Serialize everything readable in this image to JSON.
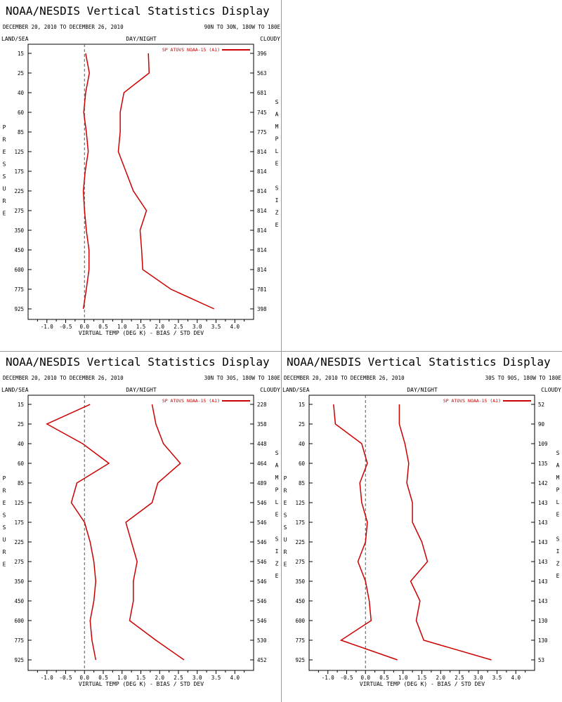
{
  "display_title": "NOAA/NESDIS Vertical Statistics Display",
  "date_range": "DECEMBER 20, 2010 TO DECEMBER 26, 2010",
  "land_sea_label": "LAND/SEA",
  "day_night_label": "DAY/NIGHT",
  "cloudy_label": "CLOUDY",
  "pressure_label_letters": [
    "P",
    "R",
    "E",
    "S",
    "S",
    "U",
    "R",
    "E"
  ],
  "sample_size_letters": [
    "S",
    "A",
    "M",
    "P",
    "L",
    "E",
    "",
    "S",
    "I",
    "Z",
    "E"
  ],
  "colors": {
    "series": "#cc0000",
    "zero_line": "#555555",
    "axis": "#000000",
    "divider": "#9a9a9a"
  },
  "chart_data": [
    {
      "type": "line",
      "region": "90N TO 30N, 180W TO 180E",
      "legend": "SP ATOVS NOAA-15 (A1)",
      "xlabel": "VIRTUAL TEMP (DEG K) - BIAS / STD DEV",
      "ylabel": "PRESSURE",
      "xlim": [
        -1.5,
        4.5
      ],
      "xticks": [
        "-1.0",
        "-0.5",
        "0.0",
        "0.5",
        "1.0",
        "1.5",
        "2.0",
        "2.5",
        "3.0",
        "3.5",
        "4.0"
      ],
      "y_categories": [
        "15",
        "25",
        "40",
        "60",
        "85",
        "125",
        "175",
        "225",
        "275",
        "350",
        "450",
        "600",
        "775",
        "925"
      ],
      "sample_sizes": [
        "396",
        "563",
        "681",
        "745",
        "775",
        "814",
        "814",
        "814",
        "814",
        "814",
        "814",
        "814",
        "781",
        "398"
      ],
      "series": [
        {
          "name": "BIAS",
          "values": [
            0.03,
            0.13,
            0.03,
            -0.02,
            0.05,
            0.1,
            0.02,
            -0.03,
            0.0,
            0.05,
            0.12,
            0.12,
            0.05,
            -0.03
          ]
        },
        {
          "name": "STD DEV",
          "values": [
            1.7,
            1.72,
            1.05,
            0.95,
            0.95,
            0.9,
            1.1,
            1.3,
            1.65,
            1.48,
            1.52,
            1.55,
            2.3,
            3.45
          ]
        }
      ]
    },
    {
      "type": "line",
      "region": "30N TO 30S, 180W TO 180E",
      "legend": "SP ATOVS NOAA-15 (A1)",
      "xlabel": "VIRTUAL TEMP (DEG K) - BIAS / STD DEV",
      "ylabel": "PRESSURE",
      "xlim": [
        -1.5,
        4.5
      ],
      "xticks": [
        "-1.0",
        "-0.5",
        "0.0",
        "0.5",
        "1.0",
        "1.5",
        "2.0",
        "2.5",
        "3.0",
        "3.5",
        "4.0"
      ],
      "y_categories": [
        "15",
        "25",
        "40",
        "60",
        "85",
        "125",
        "175",
        "225",
        "275",
        "350",
        "450",
        "600",
        "775",
        "925"
      ],
      "sample_sizes": [
        "228",
        "358",
        "448",
        "464",
        "489",
        "546",
        "546",
        "546",
        "546",
        "546",
        "546",
        "546",
        "530",
        "452"
      ],
      "series": [
        {
          "name": "BIAS",
          "values": [
            0.15,
            -1.0,
            -0.05,
            0.65,
            -0.2,
            -0.35,
            0.0,
            0.15,
            0.25,
            0.3,
            0.25,
            0.15,
            0.2,
            0.3
          ]
        },
        {
          "name": "STD DEV",
          "values": [
            1.8,
            1.9,
            2.1,
            2.55,
            1.95,
            1.8,
            1.1,
            1.25,
            1.4,
            1.3,
            1.3,
            1.2,
            1.9,
            2.65
          ]
        }
      ]
    },
    {
      "type": "line",
      "region": "30S TO 90S, 180W TO 180E",
      "legend": "SP ATOVS NOAA-15 (A1)",
      "xlabel": "VIRTUAL TEMP (DEG K) - BIAS / STD DEV",
      "ylabel": "PRESSURE",
      "xlim": [
        -1.5,
        4.5
      ],
      "xticks": [
        "-1.0",
        "-0.5",
        "0.0",
        "0.5",
        "1.0",
        "1.5",
        "2.0",
        "2.5",
        "3.0",
        "3.5",
        "4.0"
      ],
      "y_categories": [
        "15",
        "25",
        "40",
        "60",
        "85",
        "125",
        "175",
        "225",
        "275",
        "350",
        "450",
        "600",
        "775",
        "925"
      ],
      "sample_sizes": [
        "52",
        "90",
        "109",
        "135",
        "142",
        "143",
        "143",
        "143",
        "143",
        "143",
        "143",
        "130",
        "130",
        "53"
      ],
      "series": [
        {
          "name": "BIAS",
          "values": [
            -0.85,
            -0.8,
            -0.1,
            0.05,
            -0.15,
            -0.1,
            0.05,
            0.0,
            -0.2,
            0.0,
            0.1,
            0.15,
            -0.65,
            0.85
          ]
        },
        {
          "name": "STD DEV",
          "values": [
            0.9,
            0.9,
            1.05,
            1.15,
            1.1,
            1.25,
            1.25,
            1.5,
            1.65,
            1.2,
            1.45,
            1.35,
            1.55,
            3.35
          ]
        }
      ]
    }
  ]
}
